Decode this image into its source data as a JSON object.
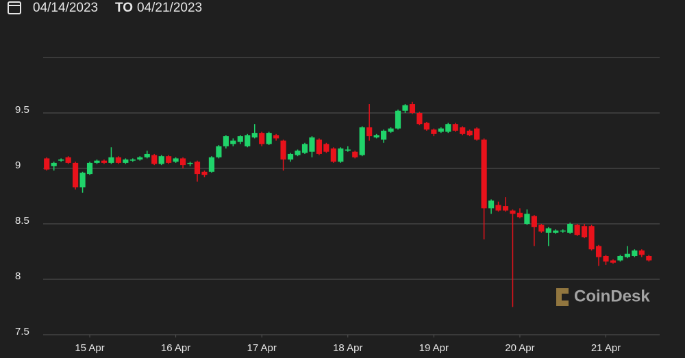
{
  "date_range": {
    "start": "04/14/2023",
    "separator": "TO",
    "end": "04/21/2023"
  },
  "chart_data": {
    "type": "candlestick",
    "watermark": "CoinDesk",
    "up_color": "#20d36a",
    "down_color": "#e8121b",
    "grid": true,
    "ylim": [
      7.5,
      10
    ],
    "yticks": [
      7.5,
      8,
      8.5,
      9,
      9.5
    ],
    "xlim": [
      -0.5,
      85.5
    ],
    "xticks": [
      {
        "value": 6,
        "label": "15 Apr"
      },
      {
        "value": 18,
        "label": "16 Apr"
      },
      {
        "value": 30,
        "label": "17 Apr"
      },
      {
        "value": 42,
        "label": "18 Apr"
      },
      {
        "value": 54,
        "label": "19 Apr"
      },
      {
        "value": 66,
        "label": "20 Apr"
      },
      {
        "value": 78,
        "label": "21 Apr"
      }
    ],
    "open": [
      9.09,
      9.02,
      9.07,
      9.1,
      9.05,
      8.83,
      8.95,
      9.05,
      9.07,
      9.05,
      9.1,
      9.05,
      9.07,
      9.08,
      9.1,
      9.12,
      9.04,
      9.11,
      9.06,
      9.09,
      9.04,
      9.06,
      8.97,
      8.97,
      9.1,
      9.2,
      9.22,
      9.24,
      9.2,
      9.28,
      9.32,
      9.22,
      9.3,
      9.25,
      9.08,
      9.12,
      9.14,
      9.15,
      9.26,
      9.22,
      9.18,
      9.06,
      9.16,
      9.15,
      9.12,
      9.37,
      9.28,
      9.26,
      9.33,
      9.36,
      9.52,
      9.58,
      9.5,
      9.41,
      9.35,
      9.33,
      9.33,
      9.4,
      9.37,
      9.34,
      9.36,
      9.26,
      8.64,
      8.67,
      8.66,
      8.62,
      8.6,
      8.5,
      8.57,
      8.49,
      8.42,
      8.42,
      8.43,
      8.42,
      8.49,
      8.48,
      8.48,
      8.3,
      8.21,
      8.17,
      8.17,
      8.2,
      8.21,
      8.26,
      8.21
    ],
    "high": [
      9.1,
      9.06,
      9.09,
      9.11,
      9.06,
      8.97,
      9.06,
      9.08,
      9.08,
      9.19,
      9.11,
      9.09,
      9.09,
      9.11,
      9.16,
      9.13,
      9.12,
      9.12,
      9.1,
      9.1,
      9.06,
      9.07,
      8.98,
      9.11,
      9.21,
      9.3,
      9.27,
      9.3,
      9.31,
      9.4,
      9.33,
      9.33,
      9.31,
      9.26,
      9.14,
      9.17,
      9.23,
      9.29,
      9.27,
      9.23,
      9.19,
      9.19,
      9.2,
      9.16,
      9.38,
      9.58,
      9.31,
      9.35,
      9.37,
      9.53,
      9.58,
      9.6,
      9.51,
      9.42,
      9.36,
      9.37,
      9.41,
      9.41,
      9.38,
      9.35,
      9.37,
      9.27,
      8.72,
      8.7,
      8.74,
      8.63,
      8.64,
      8.63,
      8.58,
      8.5,
      8.47,
      8.45,
      8.45,
      8.51,
      8.5,
      8.5,
      8.49,
      8.31,
      8.22,
      8.18,
      8.22,
      8.3,
      8.27,
      8.27,
      8.22
    ],
    "low": [
      8.98,
      8.98,
      9.06,
      9.04,
      8.81,
      8.78,
      8.94,
      9.04,
      9.04,
      9.04,
      9.04,
      9.04,
      9.06,
      9.07,
      9.09,
      9.03,
      9.03,
      9.04,
      9.05,
      9.0,
      9.02,
      8.88,
      8.92,
      8.96,
      9.09,
      9.18,
      9.2,
      9.22,
      9.19,
      9.27,
      9.2,
      9.21,
      9.25,
      8.98,
      9.06,
      9.11,
      9.13,
      9.1,
      9.12,
      9.14,
      9.05,
      9.05,
      9.15,
      9.09,
      9.11,
      9.25,
      9.27,
      9.23,
      9.32,
      9.35,
      9.5,
      9.49,
      9.39,
      9.34,
      9.29,
      9.32,
      9.32,
      9.33,
      9.3,
      9.29,
      9.25,
      8.36,
      8.59,
      8.61,
      8.61,
      7.75,
      8.55,
      8.49,
      8.3,
      8.42,
      8.3,
      8.41,
      8.42,
      8.41,
      8.39,
      8.37,
      8.26,
      8.12,
      8.13,
      8.14,
      8.16,
      8.19,
      8.2,
      8.2,
      8.16
    ],
    "close": [
      8.99,
      9.05,
      9.08,
      9.05,
      8.83,
      8.96,
      9.05,
      9.07,
      9.05,
      9.1,
      9.05,
      9.08,
      9.08,
      9.1,
      9.13,
      9.04,
      9.11,
      9.05,
      9.09,
      9.03,
      9.05,
      8.95,
      8.94,
      9.1,
      9.2,
      9.29,
      9.25,
      9.29,
      9.3,
      9.32,
      9.22,
      9.32,
      9.27,
      9.08,
      9.13,
      9.16,
      9.22,
      9.28,
      9.13,
      9.15,
      9.06,
      9.18,
      9.17,
      9.1,
      9.37,
      9.29,
      9.3,
      9.34,
      9.36,
      9.52,
      9.57,
      9.5,
      9.4,
      9.35,
      9.31,
      9.36,
      9.4,
      9.34,
      9.31,
      9.3,
      9.26,
      8.64,
      8.71,
      8.62,
      8.62,
      8.59,
      8.56,
      8.59,
      8.47,
      8.43,
      8.46,
      8.44,
      8.44,
      8.5,
      8.4,
      8.38,
      8.27,
      8.2,
      8.16,
      8.15,
      8.21,
      8.23,
      8.26,
      8.22,
      8.17
    ]
  }
}
